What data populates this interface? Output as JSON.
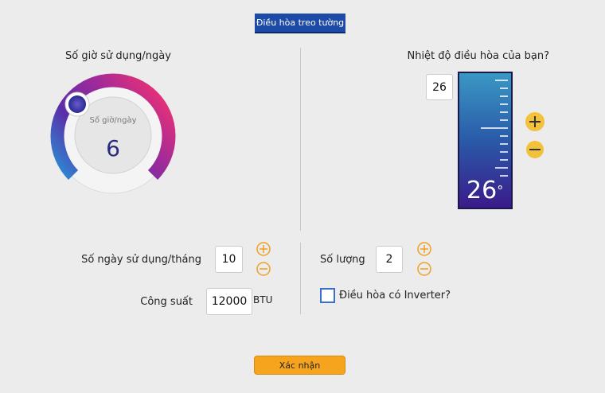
{
  "tab": {
    "label": "Điều hòa treo tường"
  },
  "hours": {
    "label": "Số giờ sử dụng/ngày",
    "caption": "Số giờ/ngày",
    "value": 6
  },
  "temperature": {
    "label": "Nhiệt độ điều hòa của bạn?",
    "value": 26,
    "unit": "°"
  },
  "days": {
    "label": "Số ngày sử dụng/tháng",
    "value": 10
  },
  "quantity": {
    "label": "Số lượng",
    "value": 2
  },
  "power": {
    "label": "Công suất",
    "value": 12000,
    "unit": "BTU"
  },
  "inverter": {
    "label": "Điều hòa có Inverter?"
  },
  "confirm": {
    "label": "Xác nhận"
  }
}
